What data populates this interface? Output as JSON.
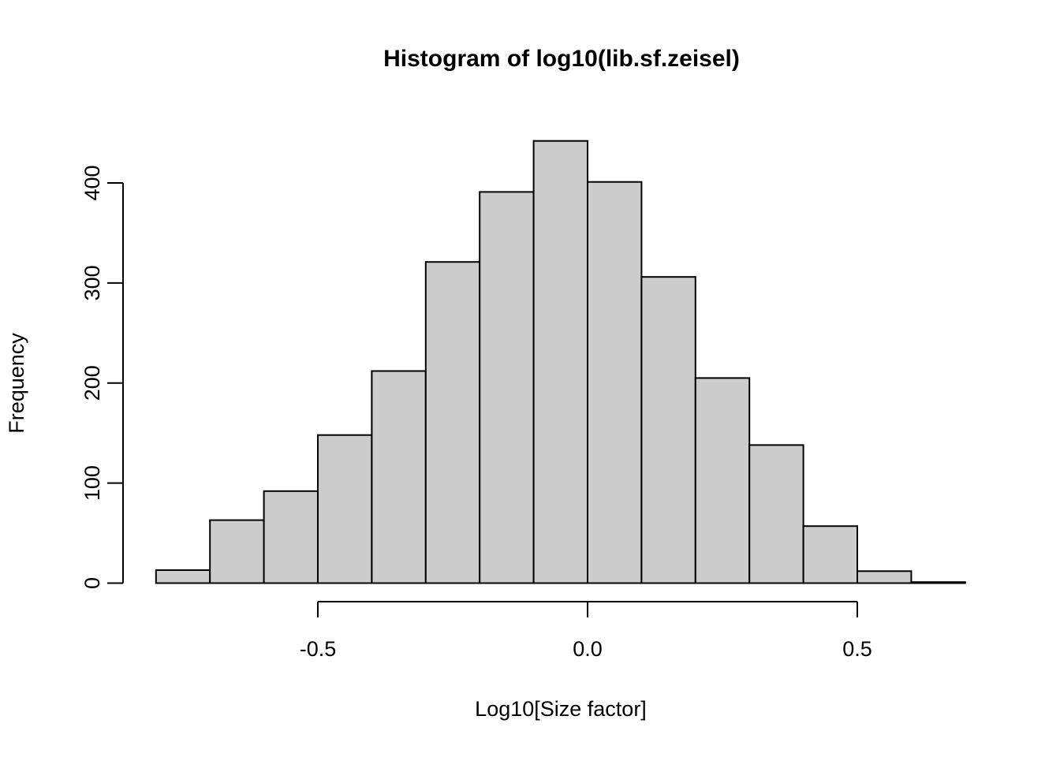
{
  "page": {
    "background": "#FFFFFF"
  },
  "chart_data": {
    "type": "bar",
    "subtype": "histogram",
    "title": "Histogram of log10(lib.sf.zeisel)",
    "xlabel": "Log10[Size factor]",
    "ylabel": "Frequency",
    "bin_width": 0.1,
    "bin_edges": [
      -0.8,
      -0.7,
      -0.6,
      -0.5,
      -0.4,
      -0.3,
      -0.2,
      -0.1,
      0.0,
      0.1,
      0.2,
      0.3,
      0.4,
      0.5,
      0.6,
      0.7
    ],
    "counts": [
      13,
      63,
      92,
      148,
      212,
      321,
      391,
      442,
      401,
      306,
      205,
      138,
      57,
      12,
      1
    ],
    "x_ticks": [
      -0.5,
      0.0,
      0.5
    ],
    "x_tick_labels": [
      "-0.5",
      "0.0",
      "0.5"
    ],
    "y_ticks": [
      0,
      100,
      200,
      300,
      400
    ],
    "y_tick_labels": [
      "0",
      "100",
      "200",
      "300",
      "400"
    ],
    "xlim": [
      -0.8,
      0.7
    ],
    "ylim": [
      0,
      450
    ],
    "grid": false,
    "legend": false,
    "colors": {
      "bar_fill": "#CCCCCC",
      "bar_stroke": "#000000",
      "axis": "#000000",
      "text": "#000000"
    }
  }
}
